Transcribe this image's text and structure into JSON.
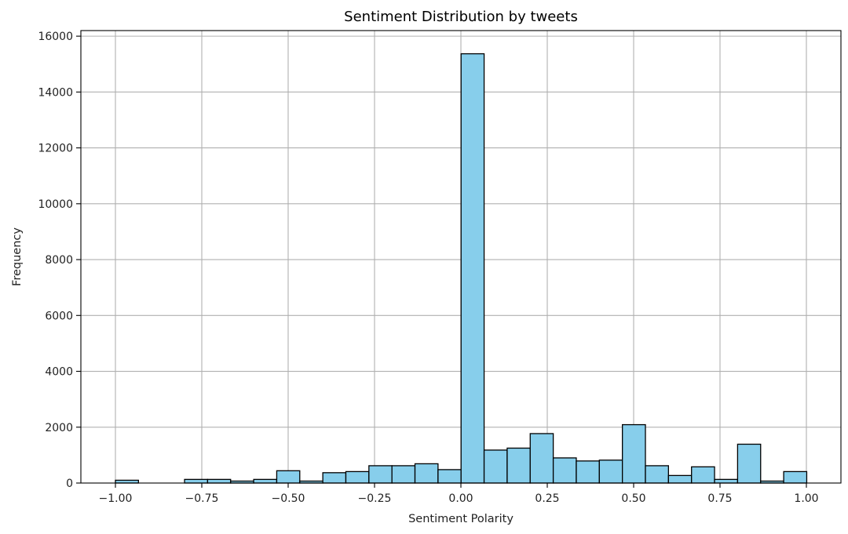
{
  "chart_data": {
    "type": "bar",
    "title": "Sentiment Distribution by tweets",
    "xlabel": "Sentiment Polarity",
    "ylabel": "Frequency",
    "xlim": [
      -1.1,
      1.1
    ],
    "ylim": [
      0,
      16200
    ],
    "grid": true,
    "bar_color": "#87ceeb",
    "edge_color": "#000000",
    "grid_color": "#b0b0b0",
    "xticks": [
      -1.0,
      -0.75,
      -0.5,
      -0.25,
      0.0,
      0.25,
      0.5,
      0.75,
      1.0
    ],
    "xtick_labels": [
      "−1.00",
      "−0.75",
      "−0.50",
      "−0.25",
      "0.00",
      "0.25",
      "0.50",
      "0.75",
      "1.00"
    ],
    "yticks": [
      0,
      2000,
      4000,
      6000,
      8000,
      10000,
      12000,
      14000,
      16000
    ],
    "ytick_labels": [
      "0",
      "2000",
      "4000",
      "6000",
      "8000",
      "10000",
      "12000",
      "14000",
      "16000"
    ],
    "bin_start": -1.0,
    "bin_width": 0.0667,
    "values": [
      100,
      0,
      0,
      130,
      130,
      70,
      130,
      440,
      70,
      370,
      410,
      620,
      620,
      690,
      480,
      15370,
      1180,
      1250,
      1770,
      900,
      790,
      820,
      2090,
      620,
      270,
      580,
      130,
      1390,
      70,
      410
    ]
  }
}
